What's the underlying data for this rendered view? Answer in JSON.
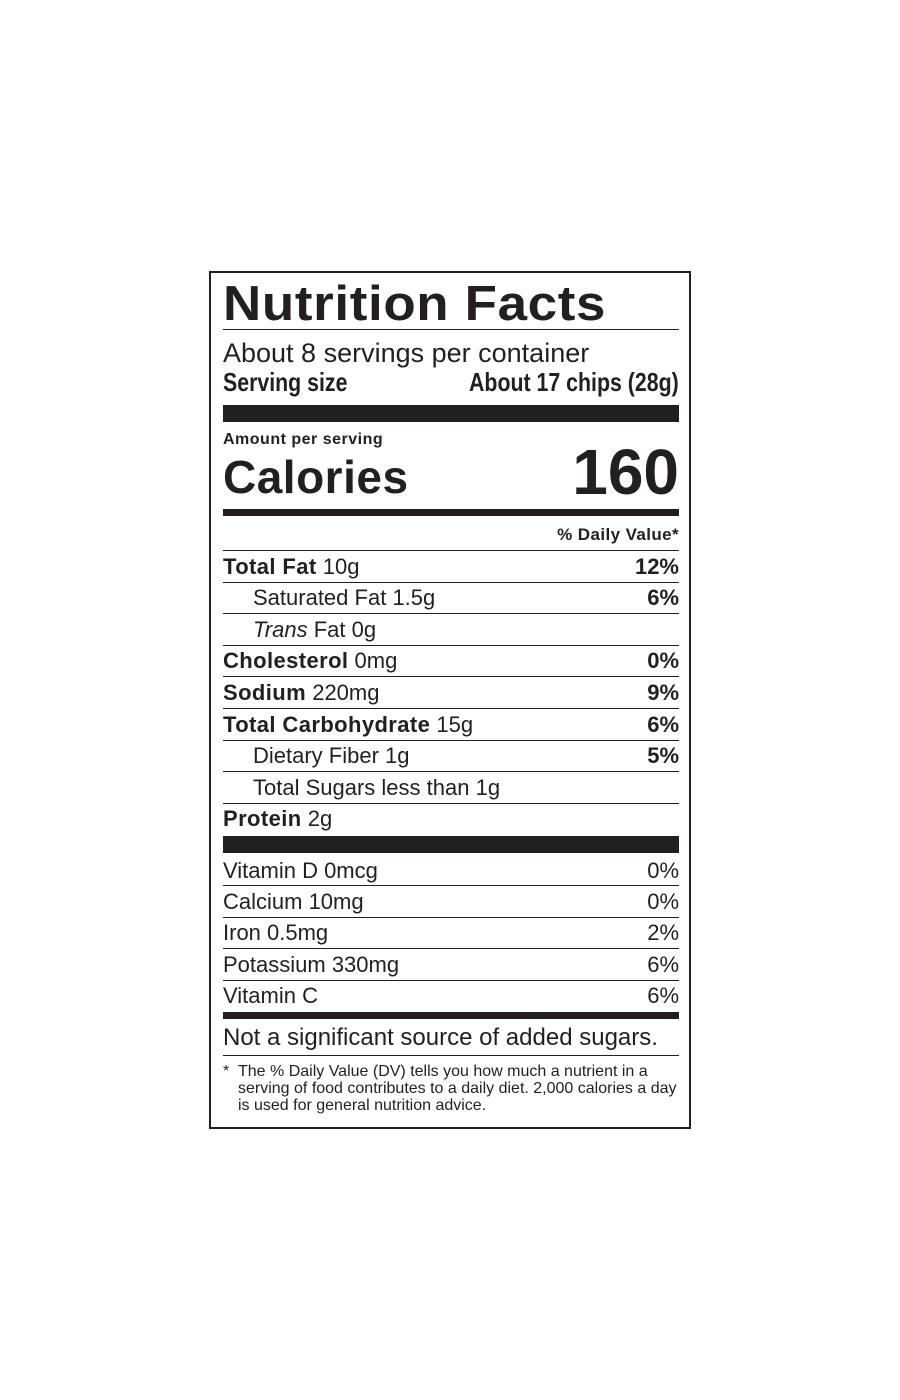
{
  "title": "Nutrition Facts",
  "servings_per_container": "About 8 servings per container",
  "serving_size": {
    "label": "Serving size",
    "value": "About 17 chips (28g)"
  },
  "amount_per_serving": "Amount per serving",
  "calories": {
    "label": "Calories",
    "value": "160"
  },
  "daily_value_header": "% Daily Value*",
  "nutrients": [
    {
      "name": "Total Fat",
      "amount": "10g",
      "dv": "12%",
      "bold": true,
      "indent": false
    },
    {
      "name": "Saturated Fat",
      "amount": "1.5g",
      "dv": "6%",
      "bold": false,
      "indent": true
    },
    {
      "name": "Trans",
      "name_suffix": "Fat",
      "amount": "0g",
      "dv": "",
      "bold": false,
      "indent": true
    },
    {
      "name": "Cholesterol",
      "amount": "0mg",
      "dv": "0%",
      "bold": true,
      "indent": false
    },
    {
      "name": "Sodium",
      "amount": "220mg",
      "dv": "9%",
      "bold": true,
      "indent": false
    },
    {
      "name": "Total Carbohydrate",
      "amount": "15g",
      "dv": "6%",
      "bold": true,
      "indent": false
    },
    {
      "name": "Dietary Fiber",
      "amount": "1g",
      "dv": "5%",
      "bold": false,
      "indent": true
    },
    {
      "name": "Total Sugars",
      "amount": "less than 1g",
      "dv": "",
      "bold": false,
      "indent": true
    },
    {
      "name": "Protein",
      "amount": "2g",
      "dv": "",
      "bold": true,
      "indent": false
    }
  ],
  "vitamins": [
    {
      "label": "Vitamin D 0mcg",
      "dv": "0%"
    },
    {
      "label": "Calcium 10mg",
      "dv": "0%"
    },
    {
      "label": "Iron 0.5mg",
      "dv": "2%"
    },
    {
      "label": "Potassium 330mg",
      "dv": "6%"
    },
    {
      "label": "Vitamin C",
      "dv": "6%"
    }
  ],
  "added_sugars_note": "Not a significant source of added sugars.",
  "footnote": {
    "marker": "*",
    "text": "The % Daily Value (DV) tells you how much a nutrient in a serving of food contributes to a daily diet. 2,000 calories a day is used for general nutrition advice."
  },
  "colors": {
    "ink": "#231f20",
    "background": "#ffffff"
  }
}
